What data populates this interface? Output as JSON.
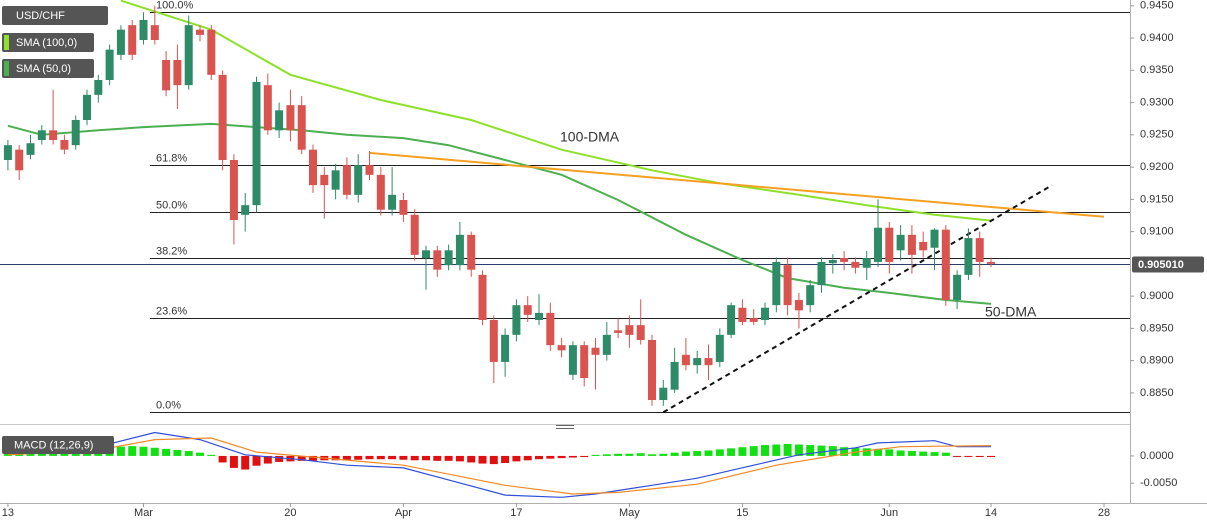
{
  "chart_data": [
    {
      "type": "candlestick",
      "title": "USD/CHF",
      "xlim": [
        -0.7,
        99.3
      ],
      "ylim": [
        0.8808,
        0.9459
      ],
      "yticks": [
        {
          "value": 0.945,
          "label": "0.9450"
        },
        {
          "value": 0.94,
          "label": "0.9400"
        },
        {
          "value": 0.935,
          "label": "0.9350"
        },
        {
          "value": 0.93,
          "label": "0.9300"
        },
        {
          "value": 0.925,
          "label": "0.9250"
        },
        {
          "value": 0.92,
          "label": "0.9200"
        },
        {
          "value": 0.915,
          "label": "0.9150"
        },
        {
          "value": 0.91,
          "label": "0.9100"
        },
        {
          "value": 0.9,
          "label": "0.9000"
        },
        {
          "value": 0.895,
          "label": "0.8950"
        },
        {
          "value": 0.89,
          "label": "0.8900"
        },
        {
          "value": 0.885,
          "label": "0.8850"
        }
      ],
      "up_color": "#2e8b67",
      "down_color": "#d9534f",
      "ohlc": [
        [
          0.9211,
          0.9242,
          0.9195,
          0.9234
        ],
        [
          0.9227,
          0.9234,
          0.918,
          0.9195
        ],
        [
          0.9219,
          0.925,
          0.9212,
          0.9237
        ],
        [
          0.9242,
          0.9265,
          0.9235,
          0.9257
        ],
        [
          0.9257,
          0.932,
          0.9235,
          0.9242
        ],
        [
          0.9242,
          0.925,
          0.922,
          0.9227
        ],
        [
          0.9234,
          0.928,
          0.9227,
          0.9273
        ],
        [
          0.9273,
          0.932,
          0.9265,
          0.9312
        ],
        [
          0.9312,
          0.9343,
          0.93,
          0.9335
        ],
        [
          0.9335,
          0.939,
          0.9327,
          0.9382
        ],
        [
          0.9374,
          0.942,
          0.9366,
          0.9413
        ],
        [
          0.942,
          0.9428,
          0.9366,
          0.9374
        ],
        [
          0.9397,
          0.944,
          0.939,
          0.9428
        ],
        [
          0.942,
          0.945,
          0.939,
          0.9397
        ],
        [
          0.9366,
          0.938,
          0.931,
          0.9319
        ],
        [
          0.9366,
          0.939,
          0.929,
          0.9327
        ],
        [
          0.9327,
          0.9435,
          0.932,
          0.942
        ],
        [
          0.9413,
          0.942,
          0.9395,
          0.9405
        ],
        [
          0.9413,
          0.942,
          0.9335,
          0.9343
        ],
        [
          0.9343,
          0.935,
          0.9195,
          0.9211
        ],
        [
          0.9211,
          0.922,
          0.908,
          0.9118
        ],
        [
          0.9126,
          0.916,
          0.91,
          0.9141
        ],
        [
          0.9141,
          0.934,
          0.913,
          0.9332
        ],
        [
          0.9327,
          0.9345,
          0.925,
          0.9257
        ],
        [
          0.9257,
          0.93,
          0.9245,
          0.9288
        ],
        [
          0.9296,
          0.932,
          0.924,
          0.9257
        ],
        [
          0.9296,
          0.931,
          0.922,
          0.9227
        ],
        [
          0.9227,
          0.9235,
          0.916,
          0.9172
        ],
        [
          0.9188,
          0.92,
          0.912,
          0.9172
        ],
        [
          0.9165,
          0.9205,
          0.915,
          0.9195
        ],
        [
          0.9203,
          0.9215,
          0.915,
          0.9157
        ],
        [
          0.9157,
          0.922,
          0.9145,
          0.9203
        ],
        [
          0.9203,
          0.9225,
          0.918,
          0.9188
        ],
        [
          0.9188,
          0.92,
          0.9125,
          0.9134
        ],
        [
          0.9134,
          0.92,
          0.9125,
          0.9157
        ],
        [
          0.9149,
          0.916,
          0.9115,
          0.9126
        ],
        [
          0.9126,
          0.9135,
          0.9055,
          0.9064
        ],
        [
          0.9059,
          0.9078,
          0.901,
          0.9071
        ],
        [
          0.9071,
          0.9078,
          0.903,
          0.9041
        ],
        [
          0.9048,
          0.908,
          0.904,
          0.9071
        ],
        [
          0.9048,
          0.9115,
          0.904,
          0.9095
        ],
        [
          0.9095,
          0.91,
          0.903,
          0.9041
        ],
        [
          0.9033,
          0.904,
          0.8955,
          0.8963
        ],
        [
          0.8963,
          0.897,
          0.8865,
          0.8898
        ],
        [
          0.8898,
          0.895,
          0.8875,
          0.894
        ],
        [
          0.894,
          0.8995,
          0.893,
          0.8986
        ],
        [
          0.8986,
          0.9,
          0.896,
          0.8971
        ],
        [
          0.8963,
          0.9003,
          0.8955,
          0.8974
        ],
        [
          0.8974,
          0.899,
          0.8915,
          0.8924
        ],
        [
          0.8924,
          0.8935,
          0.8905,
          0.8916
        ],
        [
          0.8878,
          0.893,
          0.887,
          0.8924
        ],
        [
          0.8924,
          0.893,
          0.886,
          0.8873
        ],
        [
          0.892,
          0.8935,
          0.8855,
          0.8909
        ],
        [
          0.8909,
          0.896,
          0.89,
          0.894
        ],
        [
          0.8947,
          0.8965,
          0.8935,
          0.8943
        ],
        [
          0.8955,
          0.897,
          0.892,
          0.894
        ],
        [
          0.8955,
          0.8995,
          0.8925,
          0.8932
        ],
        [
          0.8932,
          0.894,
          0.883,
          0.8839
        ],
        [
          0.8839,
          0.887,
          0.883,
          0.8858
        ],
        [
          0.8855,
          0.892,
          0.885,
          0.8898
        ],
        [
          0.8909,
          0.8935,
          0.8885,
          0.8893
        ],
        [
          0.8893,
          0.8915,
          0.888,
          0.8904
        ],
        [
          0.8904,
          0.8925,
          0.887,
          0.8893
        ],
        [
          0.8898,
          0.895,
          0.889,
          0.894
        ],
        [
          0.894,
          0.899,
          0.8935,
          0.8986
        ],
        [
          0.8982,
          0.8995,
          0.8955,
          0.896
        ],
        [
          0.8966,
          0.898,
          0.8955,
          0.896
        ],
        [
          0.8963,
          0.899,
          0.8955,
          0.8982
        ],
        [
          0.8986,
          0.906,
          0.8975,
          0.9053
        ],
        [
          0.9048,
          0.906,
          0.897,
          0.8986
        ],
        [
          0.8994,
          0.9005,
          0.895,
          0.8978
        ],
        [
          0.8986,
          0.9025,
          0.8975,
          0.9017
        ],
        [
          0.9017,
          0.906,
          0.9005,
          0.9053
        ],
        [
          0.9051,
          0.9065,
          0.9035,
          0.9056
        ],
        [
          0.9059,
          0.907,
          0.904,
          0.9053
        ],
        [
          0.9053,
          0.906,
          0.9035,
          0.9044
        ],
        [
          0.9044,
          0.907,
          0.9025,
          0.9059
        ],
        [
          0.9053,
          0.915,
          0.9045,
          0.9106
        ],
        [
          0.9106,
          0.9115,
          0.9035,
          0.9053
        ],
        [
          0.9071,
          0.911,
          0.9055,
          0.9095
        ],
        [
          0.9095,
          0.911,
          0.9035,
          0.9064
        ],
        [
          0.9084,
          0.91,
          0.906,
          0.9071
        ],
        [
          0.9075,
          0.9105,
          0.904,
          0.9103
        ],
        [
          0.9103,
          0.911,
          0.8985,
          0.8994
        ],
        [
          0.8994,
          0.904,
          0.898,
          0.9033
        ],
        [
          0.9033,
          0.9105,
          0.9025,
          0.909
        ],
        [
          0.909,
          0.91,
          0.903,
          0.9053
        ],
        [
          0.9053,
          0.906,
          0.9045,
          0.905
        ]
      ],
      "series": [
        {
          "name": "SMA (100,0)",
          "color": "#8ee02a",
          "x": [
            10,
            18,
            25,
            33,
            41,
            49,
            57,
            63,
            70,
            76,
            82,
            87
          ],
          "values": [
            0.9458,
            0.9413,
            0.9343,
            0.9304,
            0.9273,
            0.9227,
            0.9195,
            0.9175,
            0.9157,
            0.9141,
            0.9126,
            0.9117
          ]
        },
        {
          "name": "SMA (50,0)",
          "color": "#4caf50",
          "x": [
            0,
            3,
            8,
            12,
            18,
            22,
            26,
            30,
            35,
            39,
            44,
            49,
            54,
            60,
            65,
            69,
            74,
            78,
            83,
            87
          ],
          "values": [
            0.9264,
            0.925,
            0.9257,
            0.9262,
            0.9267,
            0.9262,
            0.9257,
            0.925,
            0.9245,
            0.9234,
            0.9211,
            0.9188,
            0.9149,
            0.9095,
            0.9056,
            0.9028,
            0.9013,
            0.9005,
            0.8994,
            0.8988
          ]
        }
      ],
      "annotations": [
        {
          "text": "100-DMA",
          "color": "#8ee02a"
        },
        {
          "text": "50-DMA",
          "color": "#4caf50"
        }
      ],
      "fib_levels": [
        {
          "label": "100.0%",
          "price": 0.944
        },
        {
          "label": "61.8%",
          "price": 0.9203
        },
        {
          "label": "50.0%",
          "price": 0.913
        },
        {
          "label": "38.2%",
          "price": 0.9059
        },
        {
          "label": "23.6%",
          "price": 0.8966
        },
        {
          "label": "0.0%",
          "price": 0.882
        }
      ],
      "trendlines": [
        {
          "color": "#f5a020",
          "dashed": false,
          "x": [
            32,
            97
          ],
          "values": [
            0.9222,
            0.9123
          ]
        },
        {
          "color": "#111111",
          "dashed": true,
          "x": [
            58,
            92.4
          ],
          "values": [
            0.882,
            0.9172
          ]
        }
      ],
      "last_price": {
        "value": 0.90501,
        "label": "0.905010"
      }
    },
    {
      "type": "macd",
      "title": "MACD (12,26,9)",
      "xlim": [
        -0.7,
        99.3
      ],
      "ylim": [
        -0.0081,
        0.0044
      ],
      "yticks": [
        {
          "value": 0,
          "label": "0.0000"
        },
        {
          "value": -0.005,
          "label": "-0.0050"
        }
      ],
      "xticks": [
        {
          "value": 0,
          "label": "13"
        },
        {
          "value": 12,
          "label": "Mar"
        },
        {
          "value": 25,
          "label": "20"
        },
        {
          "value": 35,
          "label": "Apr"
        },
        {
          "value": 45,
          "label": "17"
        },
        {
          "value": 55,
          "label": "May"
        },
        {
          "value": 65,
          "label": "15"
        },
        {
          "value": 78,
          "label": "Jun"
        },
        {
          "value": 87,
          "label": "14"
        },
        {
          "value": 97,
          "label": "28"
        }
      ],
      "up_color": "#12e012",
      "down_color": "#e01010",
      "histogram": [
        0.0006,
        0.0007,
        0.0008,
        0.0009,
        0.0009,
        0.001,
        0.0011,
        0.0012,
        0.0013,
        0.0015,
        0.0017,
        0.0018,
        0.0017,
        0.0015,
        0.0013,
        0.0011,
        0.0009,
        0.0006,
        0.0002,
        -0.0012,
        -0.0022,
        -0.0025,
        -0.0018,
        -0.0014,
        -0.0011,
        -0.001,
        -0.0009,
        -0.0009,
        -0.0008,
        -0.0008,
        -0.0007,
        -0.0007,
        -0.0006,
        -0.0006,
        -0.0006,
        -0.0007,
        -0.0008,
        -0.0008,
        -0.0009,
        -0.0009,
        -0.001,
        -0.0012,
        -0.0014,
        -0.0015,
        -0.0013,
        -0.001,
        -0.0008,
        -0.0006,
        -0.0005,
        -0.0004,
        -0.0003,
        -0.0002,
        0.0002,
        0.0003,
        0.0004,
        0.0004,
        0.0005,
        0.0003,
        0.0004,
        0.0006,
        0.0008,
        0.0009,
        0.001,
        0.0012,
        0.0014,
        0.0016,
        0.0018,
        0.002,
        0.0021,
        0.0022,
        0.0021,
        0.002,
        0.0019,
        0.0018,
        0.0016,
        0.0015,
        0.0014,
        0.0013,
        0.0012,
        0.001,
        0.0009,
        0.0008,
        0.0007,
        0.0006,
        -0.0001,
        -0.0001,
        -0.0002,
        -0.0002
      ],
      "series": [
        {
          "color": "#2f4fd8",
          "x": [
            0,
            8,
            13,
            17,
            21,
            26,
            30,
            35,
            39,
            44,
            49,
            52,
            57,
            61,
            66,
            70,
            75,
            77,
            82,
            84,
            87
          ],
          "values": [
            0.0011,
            0.0017,
            0.0043,
            0.003,
            0.0002,
            -0.0007,
            -0.0017,
            -0.0022,
            -0.0044,
            -0.0072,
            -0.0076,
            -0.007,
            -0.0054,
            -0.0041,
            -0.0017,
            0.0002,
            0.0015,
            0.0024,
            0.0028,
            0.0017,
            0.0017
          ]
        },
        {
          "color": "#f08a24",
          "x": [
            0,
            8,
            13,
            18,
            22,
            28,
            35,
            44,
            50,
            54,
            61,
            68,
            75,
            79,
            87
          ],
          "values": [
            0.0002,
            0.0011,
            0.003,
            0.0033,
            0.0007,
            -0.0004,
            -0.0017,
            -0.0054,
            -0.007,
            -0.0067,
            -0.0052,
            -0.0017,
            0.0007,
            0.0017,
            0.0019
          ]
        }
      ]
    }
  ]
}
